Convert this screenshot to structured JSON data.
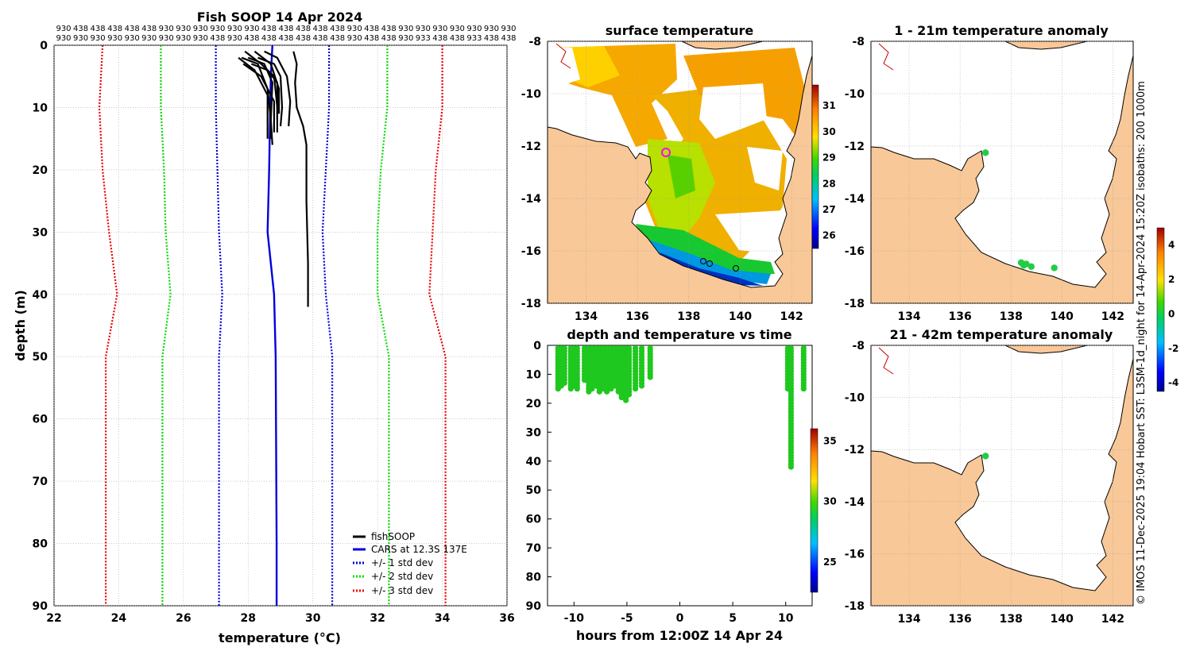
{
  "chart_data": [
    {
      "id": "profile",
      "type": "line",
      "title": "Fish SOOP 14 Apr 2024",
      "xlabel": "temperature (°C)",
      "ylabel": "depth (m)",
      "xlim": [
        22,
        36
      ],
      "ylim": [
        90,
        0
      ],
      "xticks": [
        22,
        24,
        26,
        28,
        30,
        32,
        34,
        36
      ],
      "yticks": [
        0,
        10,
        20,
        30,
        40,
        50,
        60,
        70,
        80,
        90
      ],
      "grid": true,
      "top_labels_row1": [
        "930",
        "438",
        "438",
        "438",
        "438",
        "438",
        "930",
        "930",
        "930",
        "930",
        "930",
        "930",
        "438",
        "438",
        "438",
        "438",
        "438",
        "930",
        "438",
        "438",
        "930",
        "930",
        "930",
        "930",
        "930",
        "930",
        "930"
      ],
      "top_labels_row2": [
        "930",
        "930",
        "930",
        "930",
        "930",
        "930",
        "930",
        "930",
        "930",
        "438",
        "930",
        "438",
        "438",
        "438",
        "438",
        "438",
        "438",
        "930",
        "438",
        "438",
        "930",
        "933",
        "438",
        "438",
        "933",
        "438",
        "438"
      ],
      "series": [
        {
          "name": "CARS at 12.3S 137E",
          "style": "solid",
          "color": "#0000dd",
          "points": [
            [
              28.75,
              0
            ],
            [
              28.7,
              5
            ],
            [
              28.68,
              10
            ],
            [
              28.65,
              20
            ],
            [
              28.6,
              30
            ],
            [
              28.8,
              40
            ],
            [
              28.85,
              50
            ],
            [
              28.86,
              60
            ],
            [
              28.87,
              70
            ],
            [
              28.88,
              80
            ],
            [
              28.88,
              90
            ]
          ]
        },
        {
          "name": "+/- 1 std dev",
          "style": "dotted",
          "color": "#0000dd",
          "lower": [
            [
              27.0,
              0
            ],
            [
              27.0,
              10
            ],
            [
              27.05,
              20
            ],
            [
              27.1,
              30
            ],
            [
              27.2,
              40
            ],
            [
              27.1,
              50
            ],
            [
              27.1,
              60
            ],
            [
              27.1,
              70
            ],
            [
              27.1,
              80
            ],
            [
              27.1,
              90
            ]
          ],
          "upper": [
            [
              30.5,
              0
            ],
            [
              30.5,
              10
            ],
            [
              30.4,
              20
            ],
            [
              30.3,
              30
            ],
            [
              30.4,
              40
            ],
            [
              30.6,
              50
            ],
            [
              30.6,
              60
            ],
            [
              30.6,
              70
            ],
            [
              30.6,
              80
            ],
            [
              30.6,
              90
            ]
          ]
        },
        {
          "name": "+/- 2 std dev",
          "style": "dotted",
          "color": "#00dd00",
          "lower": [
            [
              25.3,
              0
            ],
            [
              25.3,
              10
            ],
            [
              25.4,
              20
            ],
            [
              25.45,
              30
            ],
            [
              25.6,
              40
            ],
            [
              25.35,
              50
            ],
            [
              25.35,
              60
            ],
            [
              25.35,
              70
            ],
            [
              25.35,
              80
            ],
            [
              25.35,
              90
            ]
          ],
          "upper": [
            [
              32.3,
              0
            ],
            [
              32.3,
              10
            ],
            [
              32.1,
              20
            ],
            [
              32.0,
              30
            ],
            [
              32.0,
              40
            ],
            [
              32.35,
              50
            ],
            [
              32.35,
              60
            ],
            [
              32.35,
              70
            ],
            [
              32.35,
              80
            ],
            [
              32.35,
              90
            ]
          ]
        },
        {
          "name": "+/- 3 std dev",
          "style": "dotted",
          "color": "#ee0000",
          "lower": [
            [
              23.5,
              0
            ],
            [
              23.4,
              10
            ],
            [
              23.5,
              20
            ],
            [
              23.7,
              30
            ],
            [
              23.95,
              40
            ],
            [
              23.6,
              50
            ],
            [
              23.6,
              60
            ],
            [
              23.6,
              70
            ],
            [
              23.6,
              80
            ],
            [
              23.6,
              90
            ]
          ],
          "upper": [
            [
              34.0,
              0
            ],
            [
              34.0,
              10
            ],
            [
              33.8,
              20
            ],
            [
              33.7,
              30
            ],
            [
              33.6,
              40
            ],
            [
              34.1,
              50
            ],
            [
              34.1,
              60
            ],
            [
              34.1,
              70
            ],
            [
              34.1,
              80
            ],
            [
              34.1,
              90
            ]
          ]
        },
        {
          "name": "fishSOOP",
          "style": "solid",
          "color": "#000000",
          "profiles": [
            [
              [
                28.0,
                2
              ],
              [
                28.5,
                3
              ],
              [
                28.75,
                6
              ],
              [
                28.7,
                12
              ],
              [
                28.7,
                15
              ]
            ],
            [
              [
                27.8,
                2
              ],
              [
                28.3,
                3
              ],
              [
                28.6,
                7
              ],
              [
                28.7,
                12
              ],
              [
                28.75,
                16
              ]
            ],
            [
              [
                27.9,
                1
              ],
              [
                28.4,
                3
              ],
              [
                28.8,
                5
              ],
              [
                28.9,
                10
              ],
              [
                28.9,
                14
              ]
            ],
            [
              [
                28.1,
                3
              ],
              [
                28.6,
                4
              ],
              [
                28.9,
                6
              ],
              [
                28.9,
                12
              ]
            ],
            [
              [
                27.7,
                2
              ],
              [
                28.2,
                4
              ],
              [
                28.6,
                8
              ],
              [
                28.6,
                15
              ]
            ],
            [
              [
                28.3,
                2
              ],
              [
                28.8,
                3
              ],
              [
                29.0,
                5
              ],
              [
                29.05,
                10
              ],
              [
                29.0,
                13
              ]
            ],
            [
              [
                29.4,
                1
              ],
              [
                29.5,
                3
              ],
              [
                29.45,
                6
              ],
              [
                29.5,
                10
              ],
              [
                29.7,
                13
              ],
              [
                29.8,
                16
              ],
              [
                29.8,
                25
              ],
              [
                29.85,
                35
              ],
              [
                29.85,
                42
              ]
            ],
            [
              [
                28.5,
                1
              ],
              [
                28.9,
                2
              ],
              [
                29.2,
                5
              ],
              [
                29.3,
                9
              ],
              [
                29.25,
                13
              ]
            ],
            [
              [
                28.2,
                1
              ],
              [
                28.7,
                3
              ],
              [
                28.95,
                7
              ],
              [
                28.95,
                11
              ]
            ],
            [
              [
                27.85,
                3
              ],
              [
                28.4,
                5
              ],
              [
                28.8,
                9
              ],
              [
                28.8,
                14
              ]
            ]
          ]
        }
      ],
      "legend": [
        "fishSOOP",
        "CARS at 12.3S 137E",
        "+/- 1 std dev",
        "+/- 2 std dev",
        "+/- 3 std dev"
      ],
      "legend_position": "bottom-right"
    },
    {
      "id": "timeseries",
      "type": "scatter",
      "title": "depth and temperature vs time",
      "xlabel": "hours from 12:00Z 14 Apr 24",
      "ylabel": "",
      "xlim": [
        -12.5,
        12.5
      ],
      "ylim": [
        90,
        0
      ],
      "xticks": [
        -10,
        -5,
        0,
        5,
        10
      ],
      "xticklabels": [
        "-10",
        "-5",
        "0",
        "5",
        "10"
      ],
      "yticks": [
        0,
        10,
        20,
        30,
        40,
        50,
        60,
        70,
        80,
        90
      ],
      "grid": false,
      "marker_color": "#1ec81e",
      "casts": [
        {
          "x": -11.5,
          "max_depth": 15
        },
        {
          "x": -11.2,
          "max_depth": 14
        },
        {
          "x": -10.9,
          "max_depth": 13
        },
        {
          "x": -10.3,
          "max_depth": 15
        },
        {
          "x": -10.0,
          "max_depth": 14
        },
        {
          "x": -9.7,
          "max_depth": 15
        },
        {
          "x": -9.0,
          "max_depth": 12
        },
        {
          "x": -8.6,
          "max_depth": 16
        },
        {
          "x": -8.3,
          "max_depth": 15
        },
        {
          "x": -7.9,
          "max_depth": 14
        },
        {
          "x": -7.6,
          "max_depth": 16
        },
        {
          "x": -7.2,
          "max_depth": 15
        },
        {
          "x": -6.9,
          "max_depth": 16
        },
        {
          "x": -6.5,
          "max_depth": 15
        },
        {
          "x": -6.2,
          "max_depth": 14
        },
        {
          "x": -5.8,
          "max_depth": 16
        },
        {
          "x": -5.5,
          "max_depth": 18
        },
        {
          "x": -5.1,
          "max_depth": 19
        },
        {
          "x": -4.8,
          "max_depth": 17
        },
        {
          "x": -4.2,
          "max_depth": 15
        },
        {
          "x": -3.6,
          "max_depth": 14
        },
        {
          "x": -2.8,
          "max_depth": 11
        },
        {
          "x": 10.2,
          "max_depth": 15
        },
        {
          "x": 10.5,
          "max_depth": 42
        },
        {
          "x": 11.7,
          "max_depth": 15
        }
      ],
      "colorbar": {
        "ticks": [
          25,
          30,
          35
        ],
        "range": [
          22.5,
          36
        ]
      }
    },
    {
      "id": "sst",
      "type": "heatmap",
      "title": "surface temperature",
      "xlim": [
        132.5,
        142.8
      ],
      "ylim": [
        -18,
        -8
      ],
      "xticks": [
        134,
        136,
        138,
        140,
        142
      ],
      "yticks": [
        -8,
        -10,
        -12,
        -14,
        -16,
        -18
      ],
      "colorbar": {
        "ticks": [
          26,
          27,
          28,
          29,
          30,
          31
        ],
        "range": [
          25.5,
          31.8
        ]
      }
    },
    {
      "id": "anom1",
      "type": "heatmap",
      "title": "1 - 21m temperature anomaly",
      "xlim": [
        132.5,
        142.8
      ],
      "ylim": [
        -18,
        -8
      ],
      "xticks": [
        134,
        136,
        138,
        140,
        142
      ],
      "yticks": [
        -8,
        -10,
        -12,
        -14,
        -16,
        -18
      ],
      "points": [
        [
          137.0,
          -12.25
        ],
        [
          138.4,
          -16.45
        ],
        [
          138.5,
          -16.55
        ],
        [
          138.6,
          -16.5
        ],
        [
          138.8,
          -16.6
        ],
        [
          139.7,
          -16.65
        ]
      ],
      "colorbar": {
        "ticks": [
          -4,
          -2,
          0,
          2,
          4
        ],
        "range": [
          -4.5,
          5.0
        ]
      }
    },
    {
      "id": "anom2",
      "type": "heatmap",
      "title": "21 - 42m temperature anomaly",
      "xlim": [
        132.5,
        142.8
      ],
      "ylim": [
        -18,
        -8
      ],
      "xticks": [
        134,
        136,
        138,
        140,
        142
      ],
      "yticks": [
        -8,
        -10,
        -12,
        -14,
        -16,
        -18
      ],
      "points": [
        [
          137.0,
          -12.25
        ]
      ]
    }
  ],
  "credit": "© IMOS 11-Dec-2025 19:04 Hobart SST: L3SM-1d_night for 14-Apr-2024 15:20Z isobaths: 200  1000m",
  "colors": {
    "land": "#f8c898",
    "ocean_blank": "#ffffff"
  }
}
